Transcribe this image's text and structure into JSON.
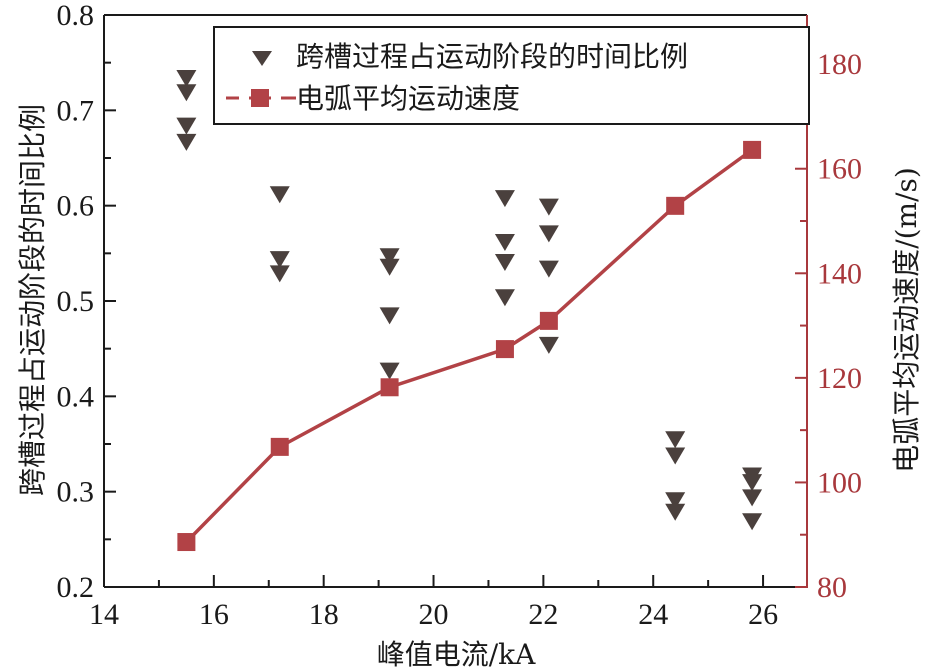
{
  "chart_data": {
    "type": "scatter+line",
    "title": "",
    "xlabel": "峰值电流/kA",
    "ylabel": "跨槽过程占运动阶段的时间比例",
    "ylabel_right": "电弧平均运动速度/(m/s)",
    "xlim": [
      14,
      26.8
    ],
    "ylim": [
      0.2,
      0.8
    ],
    "ylim_right": [
      80,
      189.4
    ],
    "x_ticks": [
      14,
      16,
      18,
      20,
      22,
      24,
      26
    ],
    "x_minor_ticks": [
      15,
      17,
      19,
      21,
      23,
      25
    ],
    "y_ticks": [
      0.2,
      0.3,
      0.4,
      0.5,
      0.6,
      0.7,
      0.8
    ],
    "y_ticks_labels": [
      "0.2",
      "0.3",
      "0.4",
      "0.5",
      "0.6",
      "0.7",
      "0.8"
    ],
    "y_minor_ticks": [
      0.25,
      0.35,
      0.45,
      0.55,
      0.65,
      0.75
    ],
    "y_right_ticks": [
      80,
      100,
      120,
      140,
      160,
      180
    ],
    "y_right_minor_ticks": [
      90,
      110,
      130,
      150,
      170
    ],
    "grid": false,
    "legend_position": "upper right",
    "series": [
      {
        "name": "跨槽过程占运动阶段的时间比例",
        "axis": "left",
        "type": "scatter",
        "marker": "triangle-down",
        "color": "#4a403d",
        "points": [
          [
            15.5,
            0.735
          ],
          [
            15.5,
            0.72
          ],
          [
            15.5,
            0.685
          ],
          [
            15.5,
            0.668
          ],
          [
            17.2,
            0.613
          ],
          [
            17.2,
            0.545
          ],
          [
            17.2,
            0.53
          ],
          [
            19.2,
            0.548
          ],
          [
            19.2,
            0.537
          ],
          [
            19.2,
            0.486
          ],
          [
            19.2,
            0.428
          ],
          [
            21.3,
            0.609
          ],
          [
            21.3,
            0.563
          ],
          [
            21.3,
            0.542
          ],
          [
            21.3,
            0.505
          ],
          [
            22.1,
            0.6
          ],
          [
            22.1,
            0.572
          ],
          [
            22.1,
            0.535
          ],
          [
            22.1,
            0.455
          ],
          [
            24.4,
            0.356
          ],
          [
            24.4,
            0.339
          ],
          [
            24.4,
            0.292
          ],
          [
            24.4,
            0.28
          ],
          [
            25.8,
            0.318
          ],
          [
            25.8,
            0.311
          ],
          [
            25.8,
            0.295
          ],
          [
            25.8,
            0.27
          ]
        ]
      },
      {
        "name": "电弧平均运动速度",
        "axis": "right",
        "type": "line",
        "marker": "square",
        "color": "#b24246",
        "x": [
          15.5,
          17.2,
          19.2,
          21.3,
          22.1,
          24.4,
          25.8
        ],
        "values": [
          88.6,
          106.8,
          118.2,
          125.5,
          130.9,
          152.9,
          163.6
        ]
      }
    ]
  },
  "colors": {
    "axis_left": "#1a1a1a",
    "axis_right": "#a8383c",
    "triangle": "#4a403d",
    "line": "#b24246"
  }
}
